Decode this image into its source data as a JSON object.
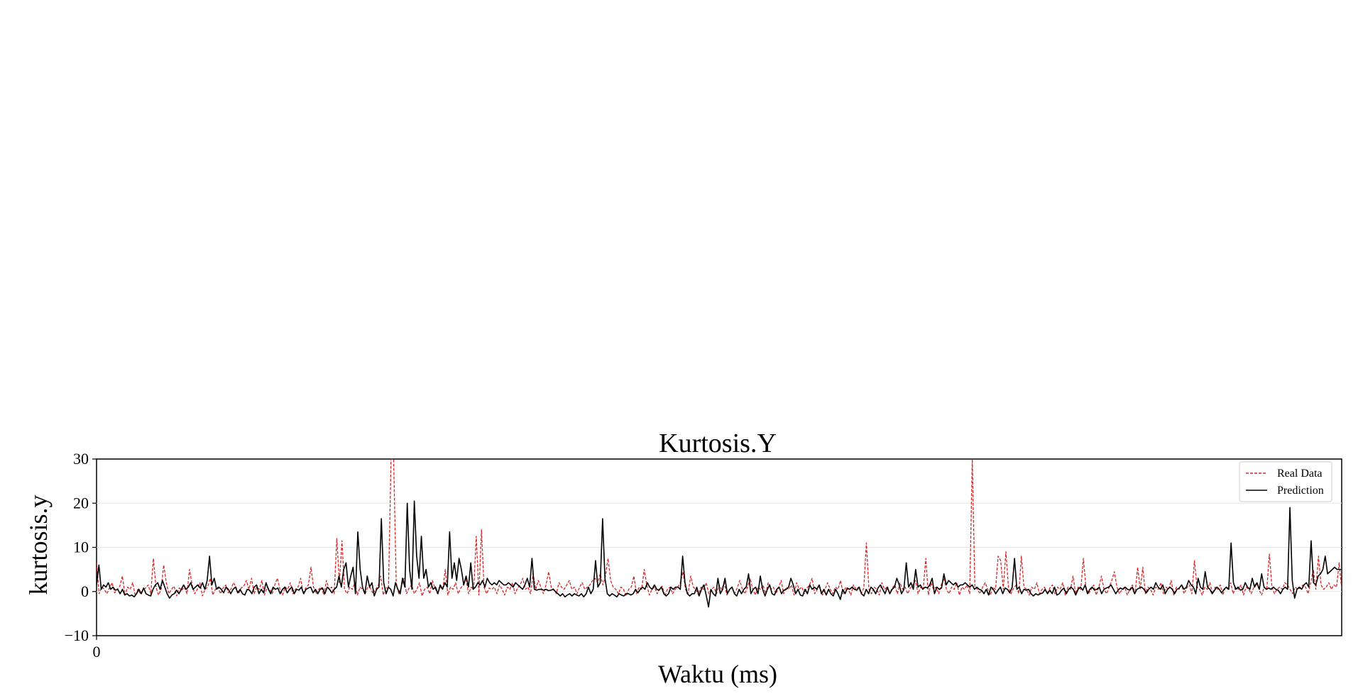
{
  "chart_data": {
    "type": "line",
    "title": "Kurtosis.Y",
    "xlabel": "Waktu (ms)",
    "ylabel": "kurtosis.y",
    "xlim": [
      0,
      600
    ],
    "ylim": [
      -10,
      30
    ],
    "yticks": [
      -10,
      0,
      10,
      20,
      30
    ],
    "ytick_labels": [
      "−10",
      "0",
      "10",
      "20",
      "30"
    ],
    "xticks": [
      0
    ],
    "xtick_labels": [
      "0"
    ],
    "grid": true,
    "legend_position": "top-right",
    "series": [
      {
        "name": "Real Data",
        "color": "#d62728",
        "style": "dashed",
        "values": [
          6.5,
          -0.5,
          1.0,
          0.5,
          -0.5,
          0.8,
          2.0,
          -0.3,
          0.5,
          1.2,
          3.5,
          -0.8,
          1.0,
          0.5,
          2.0,
          -1.0,
          0.5,
          -0.5,
          0.3,
          0.8,
          1.5,
          -0.5,
          7.5,
          1.0,
          -0.8,
          0.5,
          6.0,
          2.0,
          -0.5,
          0.5,
          1.2,
          -1.0,
          0.8,
          0.3,
          1.0,
          -0.5,
          5.0,
          1.5,
          -0.5,
          0.5,
          2.0,
          -1.0,
          0.5,
          1.0,
          3.0,
          -0.8,
          0.5,
          1.0,
          -0.5,
          0.8,
          1.5,
          -0.3,
          0.5,
          2.0,
          1.0,
          -0.5,
          0.8,
          1.2,
          2.5,
          0.5,
          3.0,
          -0.5,
          1.0,
          0.5,
          2.5,
          -0.8,
          1.0,
          0.5,
          -0.5,
          1.5,
          3.0,
          0.5,
          -0.8,
          1.0,
          0.5,
          2.0,
          -0.5,
          0.5,
          1.0,
          3.0,
          -0.5,
          0.8,
          1.5,
          5.5,
          1.0,
          -0.5,
          0.5,
          1.0,
          -0.8,
          2.5,
          0.5,
          1.0,
          -0.5,
          12.0,
          2.0,
          11.5,
          0.5,
          -0.5,
          1.0,
          0.5,
          2.0,
          -0.8,
          1.0,
          0.5,
          -0.5,
          1.0,
          0.8,
          -0.5,
          0.5,
          1.2,
          3.5,
          -0.8,
          1.0,
          0.5,
          30.0,
          30.0,
          2.0,
          -0.5,
          1.0,
          3.0,
          -0.5,
          0.8,
          1.5,
          -0.5,
          0.5,
          2.0,
          -1.0,
          0.5,
          1.0,
          -0.5,
          2.5,
          0.8,
          -0.5,
          1.0,
          0.5,
          5.0,
          -0.8,
          1.0,
          0.5,
          2.0,
          -0.5,
          0.8,
          1.5,
          3.0,
          -0.5,
          1.0,
          0.5,
          12.5,
          -0.8,
          14.0,
          1.0,
          -0.5,
          0.8,
          0.5,
          1.0,
          -0.5,
          1.5,
          0.5,
          -0.8,
          1.0,
          0.5,
          2.0,
          -0.5,
          0.8,
          1.5,
          3.0,
          0.5,
          1.0,
          -0.5,
          4.0,
          0.5,
          2.5,
          1.0,
          -0.5,
          1.5,
          4.5,
          1.0,
          0.5,
          -0.5,
          2.0,
          1.0,
          0.5,
          1.5,
          2.5,
          0.5,
          1.0,
          -0.5,
          1.0,
          2.0,
          0.5,
          1.0,
          1.5,
          2.5,
          3.0,
          2.0,
          4.0,
          1.5,
          3.5,
          7.5,
          2.5,
          1.0,
          0.5,
          -0.5,
          1.0,
          0.5,
          -1.0,
          0.5,
          1.0,
          3.5,
          -0.5,
          1.0,
          0.5,
          5.0,
          1.5,
          -0.8,
          0.5,
          1.0,
          -0.5,
          0.8,
          1.2,
          -1.0,
          0.5,
          1.0,
          -0.5,
          0.5,
          1.0,
          2.0,
          4.5,
          0.5,
          -0.5,
          3.5,
          1.0,
          0.5,
          -0.8,
          1.0,
          0.5,
          2.0,
          -0.5,
          0.5,
          1.0,
          -0.5,
          1.5,
          0.5,
          2.0,
          -0.8,
          0.5,
          1.0,
          -0.5,
          0.8,
          2.5,
          0.5,
          -0.5,
          1.0,
          3.0,
          0.5,
          -0.8,
          1.0,
          0.5,
          1.5,
          -0.5,
          2.0,
          0.5,
          1.0,
          -0.5,
          0.8,
          2.5,
          -0.5,
          1.0,
          0.5,
          1.5,
          -0.8,
          2.0,
          0.5,
          1.0,
          -0.5,
          0.8,
          1.5,
          3.0,
          -0.5,
          0.5,
          1.0,
          -0.8,
          0.5,
          2.0,
          0.5,
          -0.5,
          1.0,
          0.5,
          2.5,
          -0.5,
          1.0,
          0.5,
          -0.8,
          1.5,
          0.5,
          1.0,
          -0.5,
          0.8,
          11.0,
          0.5,
          -0.5,
          1.0,
          0.5,
          -0.8,
          2.0,
          0.5,
          1.0,
          -0.5,
          0.8,
          1.5,
          -0.5,
          2.0,
          0.5,
          1.0,
          -0.5,
          0.8,
          1.5,
          2.5,
          -0.5,
          1.0,
          0.5,
          7.5,
          -0.8,
          2.0,
          0.5,
          1.0,
          -0.5,
          1.5,
          3.0,
          0.5,
          -0.5,
          1.0,
          0.5,
          2.0,
          -0.8,
          1.0,
          0.5,
          1.5,
          -0.5,
          30.0,
          1.0,
          0.5,
          -0.5,
          1.0,
          2.0,
          0.5,
          -0.8,
          1.0,
          0.5,
          8.0,
          7.0,
          0.5,
          9.0,
          1.0,
          -0.5,
          0.8,
          1.5,
          -0.5,
          8.0,
          1.0,
          0.5,
          -0.8,
          1.0,
          0.5,
          2.0,
          -0.5,
          0.5,
          1.0,
          -0.5,
          0.8,
          1.5,
          -0.5,
          1.0,
          0.5,
          2.0,
          -0.8,
          1.0,
          0.5,
          3.5,
          -0.5,
          1.0,
          0.5,
          7.5,
          1.0,
          -0.5,
          0.5,
          1.5,
          -0.8,
          1.0,
          3.5,
          0.5,
          -0.5,
          1.0,
          2.5,
          4.5,
          1.0,
          -0.5,
          0.5,
          1.0,
          -0.8,
          0.5,
          1.5,
          -0.5,
          5.5,
          0.5,
          5.5,
          -0.5,
          1.0,
          0.5,
          -0.8,
          1.0,
          0.5,
          2.0,
          -0.5,
          1.0,
          0.5,
          2.5,
          -0.8,
          1.0,
          0.5,
          1.5,
          -0.5,
          0.8,
          1.5,
          -0.5,
          7.0,
          1.0,
          0.5,
          -0.8,
          1.0,
          0.5,
          2.0,
          -0.5,
          1.0,
          0.5,
          1.5,
          -0.8,
          1.0,
          0.5,
          2.0,
          -0.5,
          1.0,
          0.5,
          1.5,
          -0.8,
          1.0,
          0.5,
          -0.5,
          1.0,
          2.0,
          0.5,
          -0.8,
          1.0,
          0.5,
          8.5,
          1.0,
          -0.5,
          0.5,
          1.0,
          0.5,
          2.0,
          1.5,
          0.5,
          -0.5,
          1.0,
          0.5,
          0.8,
          1.5,
          1.0,
          -0.5,
          2.0,
          5.0,
          0.5,
          8.0,
          1.5,
          0.5,
          1.0,
          2.0,
          0.5,
          1.5,
          1.0,
          6.5,
          0.5
        ]
      },
      {
        "name": "Prediction",
        "color": "#000000",
        "style": "solid",
        "values": [
          1.5,
          6.0,
          0.5,
          1.5,
          1.0,
          2.0,
          0.5,
          1.0,
          0.3,
          0.5,
          -0.5,
          0.5,
          -0.8,
          -0.5,
          -1.0,
          -0.8,
          -1.2,
          -0.5,
          0.5,
          -0.5,
          0.8,
          -0.5,
          -0.8,
          -1.0,
          0.5,
          1.5,
          2.0,
          0.5,
          2.5,
          1.0,
          -0.5,
          -1.5,
          -0.8,
          -0.5,
          0.3,
          -0.5,
          0.5,
          1.5,
          0.5,
          1.0,
          2.0,
          0.5,
          1.0,
          1.5,
          0.8,
          2.0,
          0.5,
          2.5,
          8.0,
          1.5,
          3.0,
          0.5,
          1.0,
          0.5,
          -0.3,
          1.0,
          0.5,
          -0.5,
          0.5,
          1.0,
          -0.3,
          0.5,
          -0.5,
          -0.8,
          0.5,
          0.3,
          -0.5,
          1.0,
          1.5,
          -0.5,
          0.5,
          -0.3,
          2.0,
          0.5,
          -0.5,
          1.0,
          0.5,
          0.8,
          -0.5,
          0.5,
          1.0,
          -0.3,
          0.5,
          1.0,
          -0.5,
          0.5,
          0.3,
          1.0,
          -0.5,
          0.5,
          0.8,
          1.0,
          -0.3,
          0.5,
          -0.5,
          0.5,
          0.8,
          -0.5,
          1.0,
          0.5,
          -0.3,
          0.5,
          1.0,
          3.5,
          1.0,
          5.0,
          6.5,
          1.0,
          3.5,
          5.5,
          -0.5,
          13.5,
          5.0,
          1.0,
          -0.5,
          3.5,
          1.0,
          2.0,
          -1.0,
          0.5,
          1.0,
          16.5,
          2.0,
          -0.5,
          1.0,
          0.5,
          -1.0,
          2.0,
          0.5,
          -0.5,
          3.0,
          1.0,
          20.0,
          5.0,
          0.5,
          20.5,
          8.0,
          3.0,
          12.5,
          3.0,
          5.0,
          1.0,
          2.0,
          0.5,
          1.0,
          -0.5,
          1.5,
          0.5,
          2.0,
          1.0,
          13.5,
          3.0,
          6.5,
          2.5,
          7.5,
          5.0,
          1.5,
          3.5,
          1.0,
          6.5,
          0.5,
          1.0,
          2.0,
          1.5,
          2.5,
          1.0,
          3.0,
          2.0,
          1.5,
          2.0,
          1.5,
          2.5,
          2.0,
          1.5,
          1.5,
          2.0,
          1.5,
          1.0,
          2.0,
          1.5,
          1.0,
          0.5,
          1.5,
          3.0,
          1.0,
          7.5,
          0.5,
          0.3,
          0.5,
          0.5,
          0.3,
          0.5,
          0.2,
          0.3,
          0.5,
          0.0,
          -0.5,
          -1.0,
          -0.5,
          -1.2,
          -0.8,
          -0.5,
          -1.0,
          -0.5,
          -0.8,
          -1.0,
          -0.5,
          -1.2,
          -0.5,
          1.0,
          -0.5,
          0.5,
          7.0,
          1.0,
          2.0,
          16.5,
          3.0,
          -0.5,
          -1.0,
          -0.5,
          -0.8,
          -1.2,
          -0.5,
          -0.8,
          -1.0,
          -0.5,
          -0.5,
          -0.8,
          -0.5,
          0.5,
          -0.3,
          0.5,
          1.0,
          0.5,
          2.0,
          1.0,
          0.5,
          1.5,
          0.5,
          0.3,
          1.0,
          -0.5,
          -1.0,
          -0.5,
          1.0,
          0.5,
          1.0,
          1.0,
          0.5,
          8.0,
          2.0,
          -0.5,
          -1.0,
          -0.5,
          -0.5,
          1.0,
          -1.0,
          0.5,
          1.5,
          -0.8,
          -3.5,
          0.5,
          -0.5,
          -1.0,
          3.0,
          -0.5,
          0.5,
          3.0,
          -0.5,
          0.5,
          1.0,
          -0.5,
          -1.0,
          0.5,
          -0.5,
          0.5,
          1.0,
          4.0,
          -0.5,
          0.5,
          1.0,
          -0.5,
          3.5,
          0.5,
          -1.0,
          0.5,
          1.5,
          -0.5,
          -0.8,
          0.5,
          1.0,
          -0.5,
          0.3,
          0.5,
          1.0,
          3.0,
          1.5,
          -0.5,
          0.5,
          -0.8,
          -1.0,
          0.5,
          -0.5,
          1.5,
          0.5,
          1.0,
          0.5,
          1.5,
          -0.5,
          0.5,
          -0.8,
          0.5,
          -0.5,
          -1.0,
          0.5,
          -0.5,
          -1.8,
          0.5,
          -0.5,
          0.8,
          0.5,
          1.0,
          0.5,
          0.3,
          1.0,
          -0.5,
          -1.0,
          0.5,
          -0.5,
          1.0,
          0.5,
          -0.5,
          0.8,
          1.5,
          0.5,
          -0.5,
          1.0,
          -0.5,
          0.5,
          1.0,
          3.0,
          1.5,
          -0.5,
          0.5,
          6.5,
          1.0,
          2.0,
          0.5,
          5.0,
          1.0,
          1.5,
          0.5,
          1.0,
          0.8,
          1.5,
          3.0,
          -0.5,
          1.0,
          0.5,
          0.8,
          4.0,
          1.5,
          2.5,
          2.0,
          1.5,
          2.0,
          1.0,
          1.5,
          1.5,
          2.0,
          1.5,
          1.0,
          1.5,
          0.5,
          1.0,
          0.5,
          0.3,
          -0.5,
          0.5,
          -0.8,
          1.0,
          0.5,
          -0.5,
          0.3,
          1.0,
          -0.5,
          0.8,
          0.5,
          -0.3,
          1.0,
          7.5,
          0.5,
          1.0,
          -0.5,
          0.5,
          0.3,
          0.5,
          -0.5,
          -1.0,
          -0.5,
          -0.8,
          -0.5,
          -0.3,
          0.5,
          -0.5,
          0.3,
          -0.5,
          1.0,
          -0.8,
          -0.5,
          0.3,
          0.8,
          -0.5,
          0.5,
          1.0,
          0.5,
          -0.8,
          0.5,
          1.0,
          0.3,
          1.5,
          -0.5,
          0.5,
          1.0,
          0.3,
          0.5,
          1.0,
          -0.5,
          0.5,
          0.8,
          1.0,
          1.5,
          0.5,
          -0.5,
          0.3,
          0.8,
          0.5,
          1.0,
          0.5,
          0.3,
          1.0,
          -0.5,
          0.5,
          0.8,
          1.0,
          0.5,
          -0.3,
          0.5,
          1.0,
          0.5,
          2.0,
          1.0,
          0.5,
          1.5,
          -0.5,
          0.5,
          1.0,
          0.5,
          -0.5,
          0.5,
          0.8,
          1.5,
          0.5,
          1.0,
          2.5,
          1.5,
          1.0,
          -0.5,
          3.0,
          1.0,
          0.5,
          4.5,
          1.0,
          0.5,
          -0.5,
          0.3,
          1.0,
          0.5,
          -0.3,
          0.5,
          1.0,
          0.5,
          11.0,
          2.0,
          0.5,
          1.0,
          0.3,
          0.5,
          2.0,
          1.0,
          0.5,
          3.0,
          1.0,
          2.0,
          0.5,
          4.0,
          1.0,
          0.5,
          0.8,
          0.5,
          1.0,
          0.5,
          0.3,
          -0.5,
          0.5,
          1.0,
          0.5,
          19.0,
          2.5,
          -1.5,
          0.5,
          1.0,
          0.5,
          1.5,
          2.0,
          1.0,
          11.5,
          2.0,
          1.5,
          3.5,
          4.0,
          5.0,
          8.0,
          4.0,
          4.5,
          5.0,
          5.5,
          5.0,
          5.0,
          5.0
        ]
      }
    ]
  }
}
